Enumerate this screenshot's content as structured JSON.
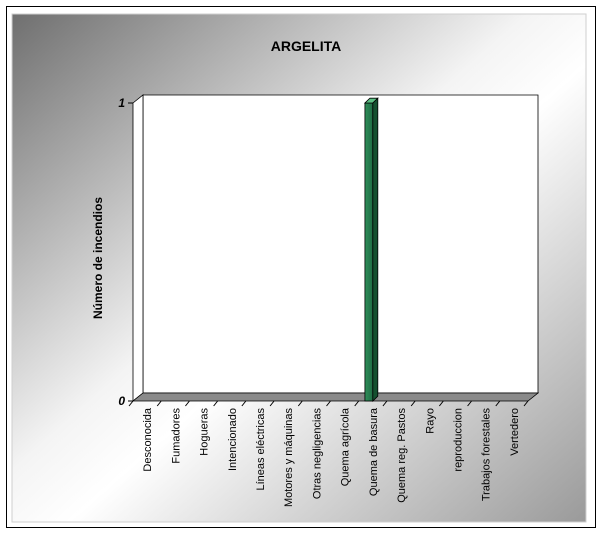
{
  "chart_data": {
    "type": "bar",
    "title": "ARGELITA",
    "ylabel": "Número de incendios",
    "xlabel": "",
    "categories": [
      "Desconocida",
      "Fumadores",
      "Hogueras",
      "Intencionado",
      "Líneas eléctricas",
      "Motores y máquinas",
      "Otras negligencias",
      "Quema agrícola",
      "Quema de basura",
      "Quema reg. Pastos",
      "Rayo",
      "reproduccion",
      "Trabajos forestales",
      "Vertedero"
    ],
    "values": [
      0,
      0,
      0,
      0,
      0,
      0,
      0,
      0,
      1,
      0,
      0,
      0,
      0,
      0
    ],
    "ylim": [
      0,
      1
    ],
    "yticks": [
      "0",
      "1"
    ],
    "grid": false,
    "legend": "none",
    "bar_color": "#2e8b57"
  }
}
